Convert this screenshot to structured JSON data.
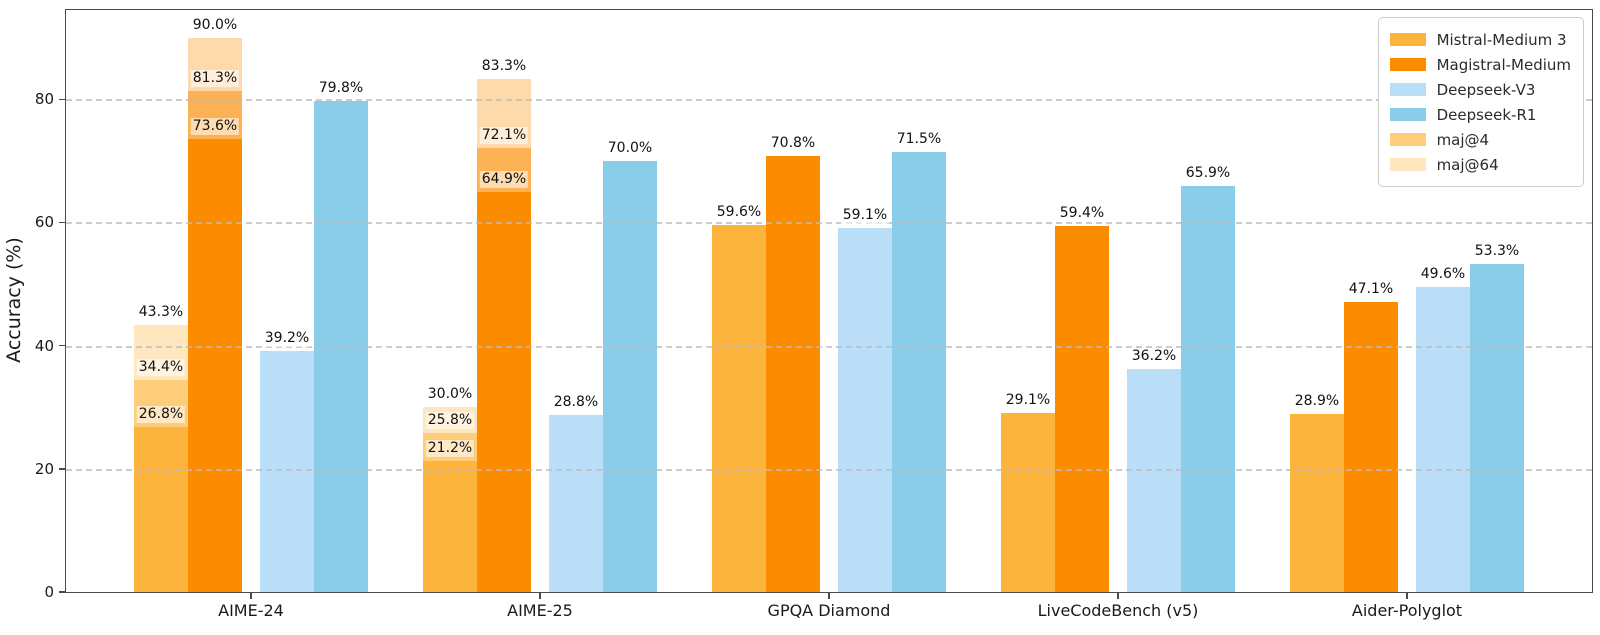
{
  "chart_data": {
    "type": "bar",
    "title": "",
    "xlabel": "",
    "ylabel": "Accuracy (%)",
    "ylim": [
      0,
      94.5
    ],
    "yticks": [
      0,
      20,
      40,
      60,
      80
    ],
    "grid": {
      "axis": "y",
      "style": "dashed",
      "color": "#bbbbbb",
      "above_bars": true
    },
    "legend_position": "upper-right",
    "categories": [
      "AIME-24",
      "AIME-25",
      "GPQA Diamond",
      "LiveCodeBench (v5)",
      "Aider-Polyglot"
    ],
    "series": [
      {
        "name": "Mistral-Medium 3",
        "color": "#FDB43C",
        "values": [
          26.8,
          21.2,
          59.6,
          29.1,
          28.9
        ],
        "maj4": [
          34.4,
          25.8,
          null,
          null,
          null
        ],
        "maj64": [
          43.3,
          30.0,
          null,
          null,
          null
        ]
      },
      {
        "name": "Magistral-Medium",
        "color": "#FB8C00",
        "values": [
          73.6,
          64.9,
          70.8,
          59.4,
          47.1
        ],
        "maj4": [
          81.3,
          72.1,
          null,
          null,
          null
        ],
        "maj64": [
          90.0,
          83.3,
          null,
          null,
          null
        ]
      },
      {
        "name": "Deepseek-V3",
        "color": "#BBDEF8",
        "values": [
          39.2,
          28.8,
          59.1,
          36.2,
          49.6
        ]
      },
      {
        "name": "Deepseek-R1",
        "color": "#8ACDE9",
        "values": [
          79.8,
          70.0,
          71.5,
          65.9,
          53.3
        ]
      }
    ],
    "overlays": [
      {
        "name": "maj@4",
        "key": "maj4",
        "alpha": 0.67
      },
      {
        "name": "maj@64",
        "key": "maj64",
        "alpha": 0.33
      }
    ],
    "legend": [
      {
        "label": "Mistral-Medium 3",
        "color": "#FDB43C",
        "alpha": 1
      },
      {
        "label": "Magistral-Medium",
        "color": "#FB8C00",
        "alpha": 1
      },
      {
        "label": "Deepseek-V3",
        "color": "#BBDEF8",
        "alpha": 1
      },
      {
        "label": "Deepseek-R1",
        "color": "#8ACDE9",
        "alpha": 1
      },
      {
        "label": "maj@4",
        "color": "#FDB43C",
        "alpha": 0.67
      },
      {
        "label": "maj@64",
        "color": "#FDB43C",
        "alpha": 0.33
      }
    ],
    "value_label_format": "{value}%"
  }
}
